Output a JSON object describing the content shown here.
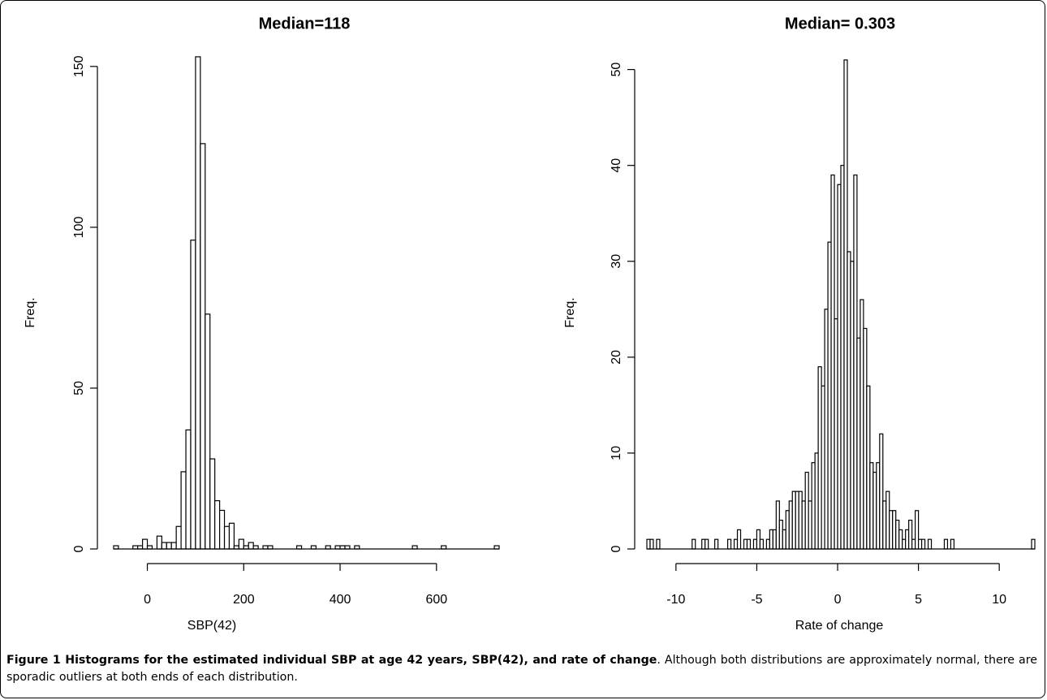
{
  "chart_data": [
    {
      "type": "bar",
      "title": "Median=118",
      "xlabel": "SBP(42)",
      "ylabel": "Freq.",
      "xlim": [
        -75,
        730
      ],
      "ylim": [
        0,
        155
      ],
      "xticks": [
        0,
        200,
        400,
        600
      ],
      "yticks": [
        0,
        50,
        100,
        150
      ],
      "bin_width": 10,
      "bins": [
        [
          -70,
          1
        ],
        [
          -30,
          1
        ],
        [
          -20,
          1
        ],
        [
          -10,
          3
        ],
        [
          0,
          1
        ],
        [
          20,
          4
        ],
        [
          30,
          2
        ],
        [
          40,
          2
        ],
        [
          50,
          2
        ],
        [
          60,
          7
        ],
        [
          70,
          24
        ],
        [
          80,
          37
        ],
        [
          90,
          96
        ],
        [
          100,
          153
        ],
        [
          110,
          126
        ],
        [
          120,
          73
        ],
        [
          130,
          28
        ],
        [
          140,
          15
        ],
        [
          150,
          12
        ],
        [
          160,
          7
        ],
        [
          170,
          8
        ],
        [
          180,
          1
        ],
        [
          190,
          3
        ],
        [
          200,
          1
        ],
        [
          210,
          2
        ],
        [
          220,
          1
        ],
        [
          240,
          1
        ],
        [
          250,
          1
        ],
        [
          310,
          1
        ],
        [
          340,
          1
        ],
        [
          370,
          1
        ],
        [
          390,
          1
        ],
        [
          400,
          1
        ],
        [
          410,
          1
        ],
        [
          430,
          1
        ],
        [
          550,
          1
        ],
        [
          610,
          1
        ],
        [
          720,
          1
        ]
      ]
    },
    {
      "type": "bar",
      "title": "Median= 0.303",
      "xlabel": "Rate of change",
      "ylabel": "Freq.",
      "xlim": [
        -11.8,
        12.2
      ],
      "ylim": [
        0,
        52
      ],
      "xticks": [
        -10,
        -5,
        0,
        5,
        10
      ],
      "yticks": [
        0,
        10,
        20,
        30,
        40,
        50
      ],
      "bin_width": 0.2,
      "bins": [
        [
          -11.8,
          1
        ],
        [
          -11.6,
          1
        ],
        [
          -11.2,
          1
        ],
        [
          -9.0,
          1
        ],
        [
          -8.4,
          1
        ],
        [
          -8.2,
          1
        ],
        [
          -7.6,
          1
        ],
        [
          -6.8,
          1
        ],
        [
          -6.4,
          1
        ],
        [
          -6.2,
          2
        ],
        [
          -5.8,
          1
        ],
        [
          -5.6,
          1
        ],
        [
          -5.2,
          1
        ],
        [
          -5.0,
          2
        ],
        [
          -4.8,
          1
        ],
        [
          -4.4,
          1
        ],
        [
          -4.2,
          2
        ],
        [
          -4.0,
          2
        ],
        [
          -3.8,
          5
        ],
        [
          -3.6,
          3
        ],
        [
          -3.4,
          2
        ],
        [
          -3.2,
          4
        ],
        [
          -3.0,
          5
        ],
        [
          -2.8,
          6
        ],
        [
          -2.6,
          6
        ],
        [
          -2.4,
          6
        ],
        [
          -2.2,
          5
        ],
        [
          -2.0,
          8
        ],
        [
          -1.8,
          5
        ],
        [
          -1.6,
          9
        ],
        [
          -1.4,
          10
        ],
        [
          -1.2,
          19
        ],
        [
          -1.0,
          17
        ],
        [
          -0.8,
          25
        ],
        [
          -0.6,
          32
        ],
        [
          -0.4,
          39
        ],
        [
          -0.2,
          24
        ],
        [
          0.0,
          38
        ],
        [
          0.2,
          40
        ],
        [
          0.4,
          51
        ],
        [
          0.6,
          31
        ],
        [
          0.8,
          30
        ],
        [
          1.0,
          39
        ],
        [
          1.2,
          22
        ],
        [
          1.4,
          26
        ],
        [
          1.6,
          23
        ],
        [
          1.8,
          17
        ],
        [
          2.0,
          9
        ],
        [
          2.2,
          8
        ],
        [
          2.4,
          9
        ],
        [
          2.6,
          12
        ],
        [
          2.8,
          5
        ],
        [
          3.0,
          6
        ],
        [
          3.2,
          4
        ],
        [
          3.4,
          4
        ],
        [
          3.6,
          3
        ],
        [
          3.8,
          2
        ],
        [
          4.0,
          1
        ],
        [
          4.2,
          2
        ],
        [
          4.4,
          3
        ],
        [
          4.6,
          1
        ],
        [
          4.8,
          4
        ],
        [
          5.0,
          1
        ],
        [
          5.2,
          1
        ],
        [
          5.6,
          1
        ],
        [
          6.6,
          1
        ],
        [
          7.0,
          1
        ],
        [
          12.0,
          1
        ]
      ]
    }
  ],
  "caption": {
    "bold": "Figure 1 Histograms for the estimated individual SBP at age 42 years, SBP(42), and rate of change",
    "rest": ". Although both distributions are approximately normal, there are sporadic outliers at both ends of each distribution."
  }
}
